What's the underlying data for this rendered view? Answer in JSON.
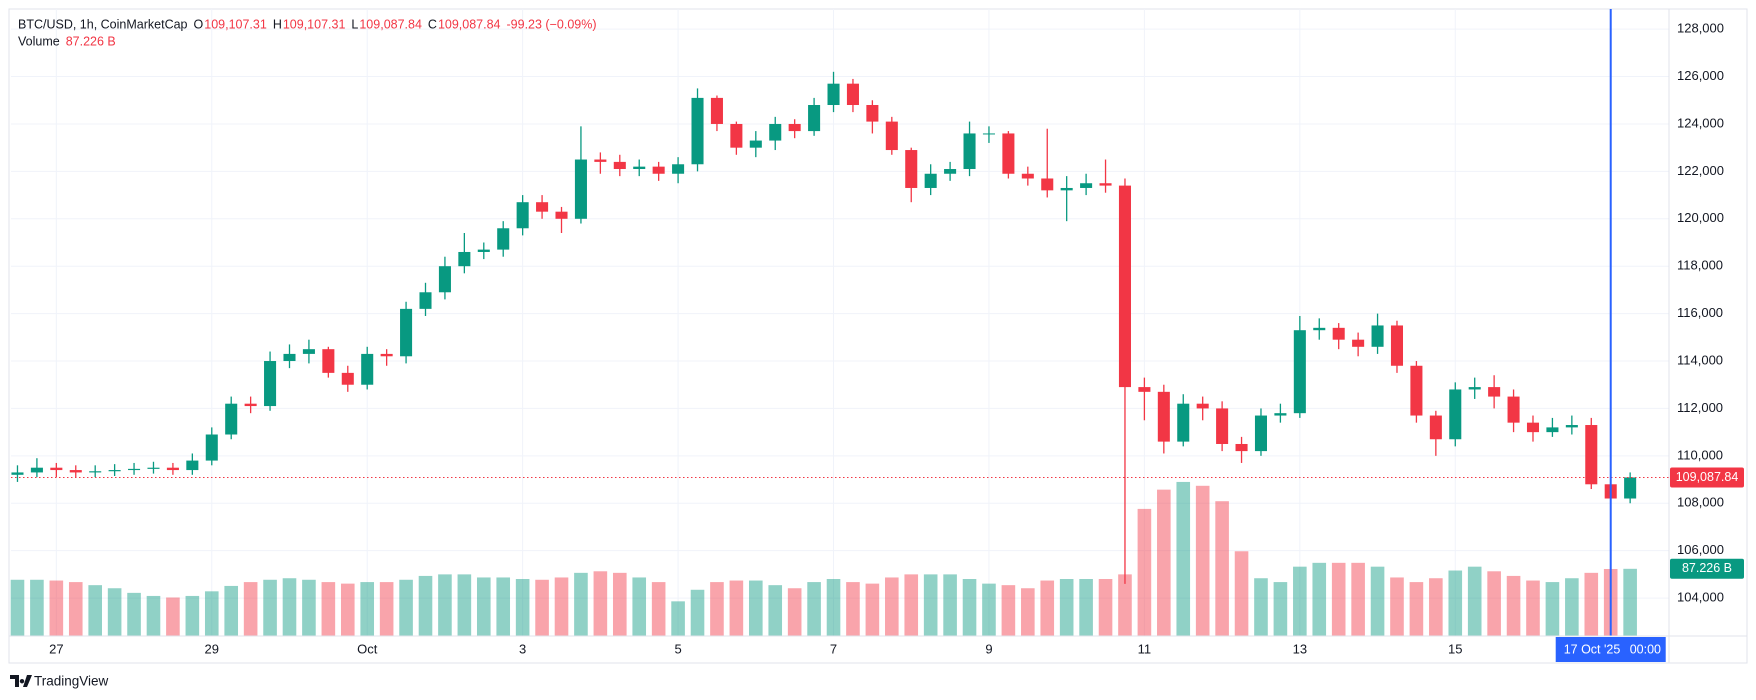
{
  "header": {
    "symbol": "BTC/USD, 1h, CoinMarketCap",
    "ohlc": [
      {
        "key": "O",
        "value": "109,107.31"
      },
      {
        "key": "H",
        "value": "109,107.31"
      },
      {
        "key": "L",
        "value": "109,087.84"
      },
      {
        "key": "C",
        "value": "109,087.84"
      }
    ],
    "change": "-99.23 (−0.09%)"
  },
  "brand": "TradingView",
  "chart_data": {
    "type": "candlestick",
    "x": [
      "2025-09-26T12:00Z",
      "2025-09-26T18:00Z",
      "2025-09-27T00:00Z",
      "2025-09-27T06:00Z",
      "2025-09-27T12:00Z",
      "2025-09-27T18:00Z",
      "2025-09-28T00:00Z",
      "2025-09-28T06:00Z",
      "2025-09-28T12:00Z",
      "2025-09-28T18:00Z",
      "2025-09-29T00:00Z",
      "2025-09-29T06:00Z",
      "2025-09-29T12:00Z",
      "2025-09-29T18:00Z",
      "2025-09-30T00:00Z",
      "2025-09-30T06:00Z",
      "2025-09-30T12:00Z",
      "2025-09-30T18:00Z",
      "2025-10-01T00:00Z",
      "2025-10-01T06:00Z",
      "2025-10-01T12:00Z",
      "2025-10-01T18:00Z",
      "2025-10-02T00:00Z",
      "2025-10-02T06:00Z",
      "2025-10-02T12:00Z",
      "2025-10-02T18:00Z",
      "2025-10-03T00:00Z",
      "2025-10-03T06:00Z",
      "2025-10-03T12:00Z",
      "2025-10-03T18:00Z",
      "2025-10-04T00:00Z",
      "2025-10-04T06:00Z",
      "2025-10-04T12:00Z",
      "2025-10-04T18:00Z",
      "2025-10-05T00:00Z",
      "2025-10-05T06:00Z",
      "2025-10-05T12:00Z",
      "2025-10-05T18:00Z",
      "2025-10-06T00:00Z",
      "2025-10-06T06:00Z",
      "2025-10-06T12:00Z",
      "2025-10-06T18:00Z",
      "2025-10-07T00:00Z",
      "2025-10-07T06:00Z",
      "2025-10-07T12:00Z",
      "2025-10-07T18:00Z",
      "2025-10-08T00:00Z",
      "2025-10-08T06:00Z",
      "2025-10-08T12:00Z",
      "2025-10-08T18:00Z",
      "2025-10-09T00:00Z",
      "2025-10-09T06:00Z",
      "2025-10-09T12:00Z",
      "2025-10-09T18:00Z",
      "2025-10-10T00:00Z",
      "2025-10-10T06:00Z",
      "2025-10-10T12:00Z",
      "2025-10-10T18:00Z",
      "2025-10-11T00:00Z",
      "2025-10-11T06:00Z",
      "2025-10-11T12:00Z",
      "2025-10-11T18:00Z",
      "2025-10-12T00:00Z",
      "2025-10-12T06:00Z",
      "2025-10-12T12:00Z",
      "2025-10-12T18:00Z",
      "2025-10-13T00:00Z",
      "2025-10-13T06:00Z",
      "2025-10-13T12:00Z",
      "2025-10-13T18:00Z",
      "2025-10-14T00:00Z",
      "2025-10-14T06:00Z",
      "2025-10-14T12:00Z",
      "2025-10-14T18:00Z",
      "2025-10-15T00:00Z",
      "2025-10-15T06:00Z",
      "2025-10-15T12:00Z",
      "2025-10-15T18:00Z",
      "2025-10-16T00:00Z",
      "2025-10-16T06:00Z",
      "2025-10-16T12:00Z",
      "2025-10-16T18:00Z",
      "2025-10-17T00:00Z",
      "2025-10-17T06:00Z"
    ],
    "open": [
      109200,
      109300,
      109500,
      109400,
      109300,
      109350,
      109400,
      109450,
      109500,
      109400,
      109800,
      110900,
      112200,
      112100,
      114000,
      114300,
      114500,
      113500,
      113000,
      114300,
      114200,
      116200,
      116900,
      118000,
      118600,
      118700,
      119600,
      120700,
      120300,
      120000,
      122500,
      122400,
      122100,
      122200,
      121900,
      122300,
      125100,
      124000,
      123000,
      123300,
      124000,
      123700,
      124800,
      125700,
      124800,
      124100,
      122900,
      121300,
      121900,
      122100,
      123600,
      123600,
      121900,
      121700,
      121200,
      121300,
      121500,
      121400,
      112900,
      112700,
      110600,
      112200,
      112000,
      110500,
      110200,
      111700,
      111800,
      115300,
      115400,
      114900,
      114600,
      115500,
      113800,
      111700,
      110700,
      112800,
      112900,
      112500,
      111400,
      111000,
      111200,
      111300,
      108800,
      108200
    ],
    "high": [
      109600,
      109900,
      109700,
      109600,
      109600,
      109650,
      109700,
      109750,
      109700,
      110100,
      111200,
      112500,
      112500,
      114400,
      114700,
      114900,
      114600,
      113800,
      114600,
      114500,
      116500,
      117300,
      118400,
      119400,
      119000,
      119900,
      121000,
      121000,
      120500,
      123900,
      122800,
      122700,
      122500,
      122400,
      122600,
      125500,
      125200,
      124100,
      123700,
      124300,
      124200,
      125100,
      126200,
      125900,
      125000,
      124300,
      123000,
      122300,
      122400,
      124100,
      123900,
      123700,
      122200,
      123800,
      121800,
      121900,
      122500,
      121700,
      113300,
      113000,
      112600,
      112500,
      112300,
      110800,
      112000,
      112200,
      115900,
      115800,
      115600,
      115200,
      116000,
      115700,
      114000,
      111900,
      113100,
      113300,
      113400,
      112800,
      111700,
      111600,
      111700,
      111600,
      109100,
      109300
    ],
    "low": [
      108900,
      109100,
      109100,
      109100,
      109100,
      109150,
      109200,
      109250,
      109200,
      109200,
      109600,
      110700,
      111800,
      111900,
      113700,
      113900,
      113300,
      112700,
      112800,
      113800,
      113900,
      115900,
      116600,
      117700,
      118300,
      118400,
      119300,
      120000,
      119400,
      119800,
      121900,
      121800,
      121800,
      121600,
      121500,
      122000,
      123700,
      122700,
      122600,
      122900,
      123400,
      123500,
      124500,
      124500,
      123600,
      122700,
      120700,
      121000,
      121600,
      121800,
      123200,
      121700,
      121400,
      120900,
      119900,
      121000,
      121100,
      104600,
      111500,
      110100,
      110400,
      111500,
      110200,
      109700,
      110000,
      111400,
      111600,
      114900,
      114500,
      114200,
      114300,
      113500,
      111400,
      110000,
      110400,
      112400,
      112000,
      111000,
      110600,
      110800,
      110900,
      108600,
      107600,
      108000
    ],
    "close": [
      109300,
      109500,
      109400,
      109300,
      109350,
      109400,
      109450,
      109500,
      109400,
      109800,
      110900,
      112200,
      112100,
      114000,
      114300,
      114500,
      113500,
      113000,
      114300,
      114200,
      116200,
      116900,
      118000,
      118600,
      118700,
      119600,
      120700,
      120300,
      120000,
      122500,
      122400,
      122100,
      122200,
      121900,
      122300,
      125100,
      124000,
      123000,
      123300,
      124000,
      123700,
      124800,
      125700,
      124800,
      124100,
      122900,
      121300,
      121900,
      122100,
      123600,
      123600,
      121900,
      121700,
      121200,
      121300,
      121500,
      121400,
      112900,
      112700,
      110600,
      112200,
      112000,
      110500,
      110200,
      111700,
      111800,
      115300,
      115400,
      114900,
      114600,
      115500,
      113800,
      111700,
      110700,
      112800,
      112900,
      112500,
      111400,
      111000,
      111200,
      111300,
      108800,
      108200,
      109088
    ],
    "up_color": "#089981",
    "down_color": "#f23645",
    "volume": {
      "name": "Volume",
      "last_label": "87.226 B",
      "values": [
        73,
        73,
        72,
        70,
        66,
        62,
        56,
        52,
        50,
        52,
        58,
        65,
        70,
        73,
        75,
        73,
        70,
        68,
        70,
        70,
        73,
        78,
        80,
        80,
        76,
        76,
        74,
        73,
        76,
        82,
        84,
        82,
        76,
        70,
        45,
        60,
        70,
        72,
        72,
        66,
        62,
        70,
        74,
        70,
        68,
        76,
        80,
        80,
        80,
        74,
        68,
        66,
        62,
        72,
        74,
        74,
        74,
        80,
        165,
        190,
        200,
        195,
        175,
        110,
        75,
        70,
        90,
        95,
        95,
        95,
        90,
        76,
        70,
        75,
        85,
        90,
        84,
        78,
        72,
        70,
        75,
        82,
        87,
        87.226
      ],
      "ylim": [
        0,
        814
      ]
    },
    "last_price": {
      "value": 109087.84,
      "label": "109,087.84"
    },
    "cursor": {
      "x": "2025-10-17T00:00Z",
      "date_label": "17 Oct '25",
      "time_label": "00:00",
      "color": "#2962ff"
    },
    "xlim": [
      "2025-09-26T10:00Z",
      "2025-10-17T18:00Z"
    ],
    "xticks": [
      {
        "value": "2025-09-27T00:00Z",
        "label": "27"
      },
      {
        "value": "2025-09-29T00:00Z",
        "label": "29"
      },
      {
        "value": "2025-10-01T00:00Z",
        "label": "Oct"
      },
      {
        "value": "2025-10-03T00:00Z",
        "label": "3"
      },
      {
        "value": "2025-10-05T00:00Z",
        "label": "5"
      },
      {
        "value": "2025-10-07T00:00Z",
        "label": "7"
      },
      {
        "value": "2025-10-09T00:00Z",
        "label": "9"
      },
      {
        "value": "2025-10-11T00:00Z",
        "label": "11"
      },
      {
        "value": "2025-10-13T00:00Z",
        "label": "13"
      },
      {
        "value": "2025-10-15T00:00Z",
        "label": "15"
      }
    ],
    "ylim": [
      102400,
      128850
    ],
    "yticks": [
      {
        "value": 104000,
        "label": "104,000"
      },
      {
        "value": 106000,
        "label": "106,000"
      },
      {
        "value": 108000,
        "label": "108,000"
      },
      {
        "value": 110000,
        "label": "110,000"
      },
      {
        "value": 112000,
        "label": "112,000"
      },
      {
        "value": 114000,
        "label": "114,000"
      },
      {
        "value": 116000,
        "label": "116,000"
      },
      {
        "value": 118000,
        "label": "118,000"
      },
      {
        "value": 120000,
        "label": "120,000"
      },
      {
        "value": 122000,
        "label": "122,000"
      },
      {
        "value": 124000,
        "label": "124,000"
      },
      {
        "value": 126000,
        "label": "126,000"
      },
      {
        "value": 128000,
        "label": "128,000"
      }
    ],
    "grid": true
  }
}
